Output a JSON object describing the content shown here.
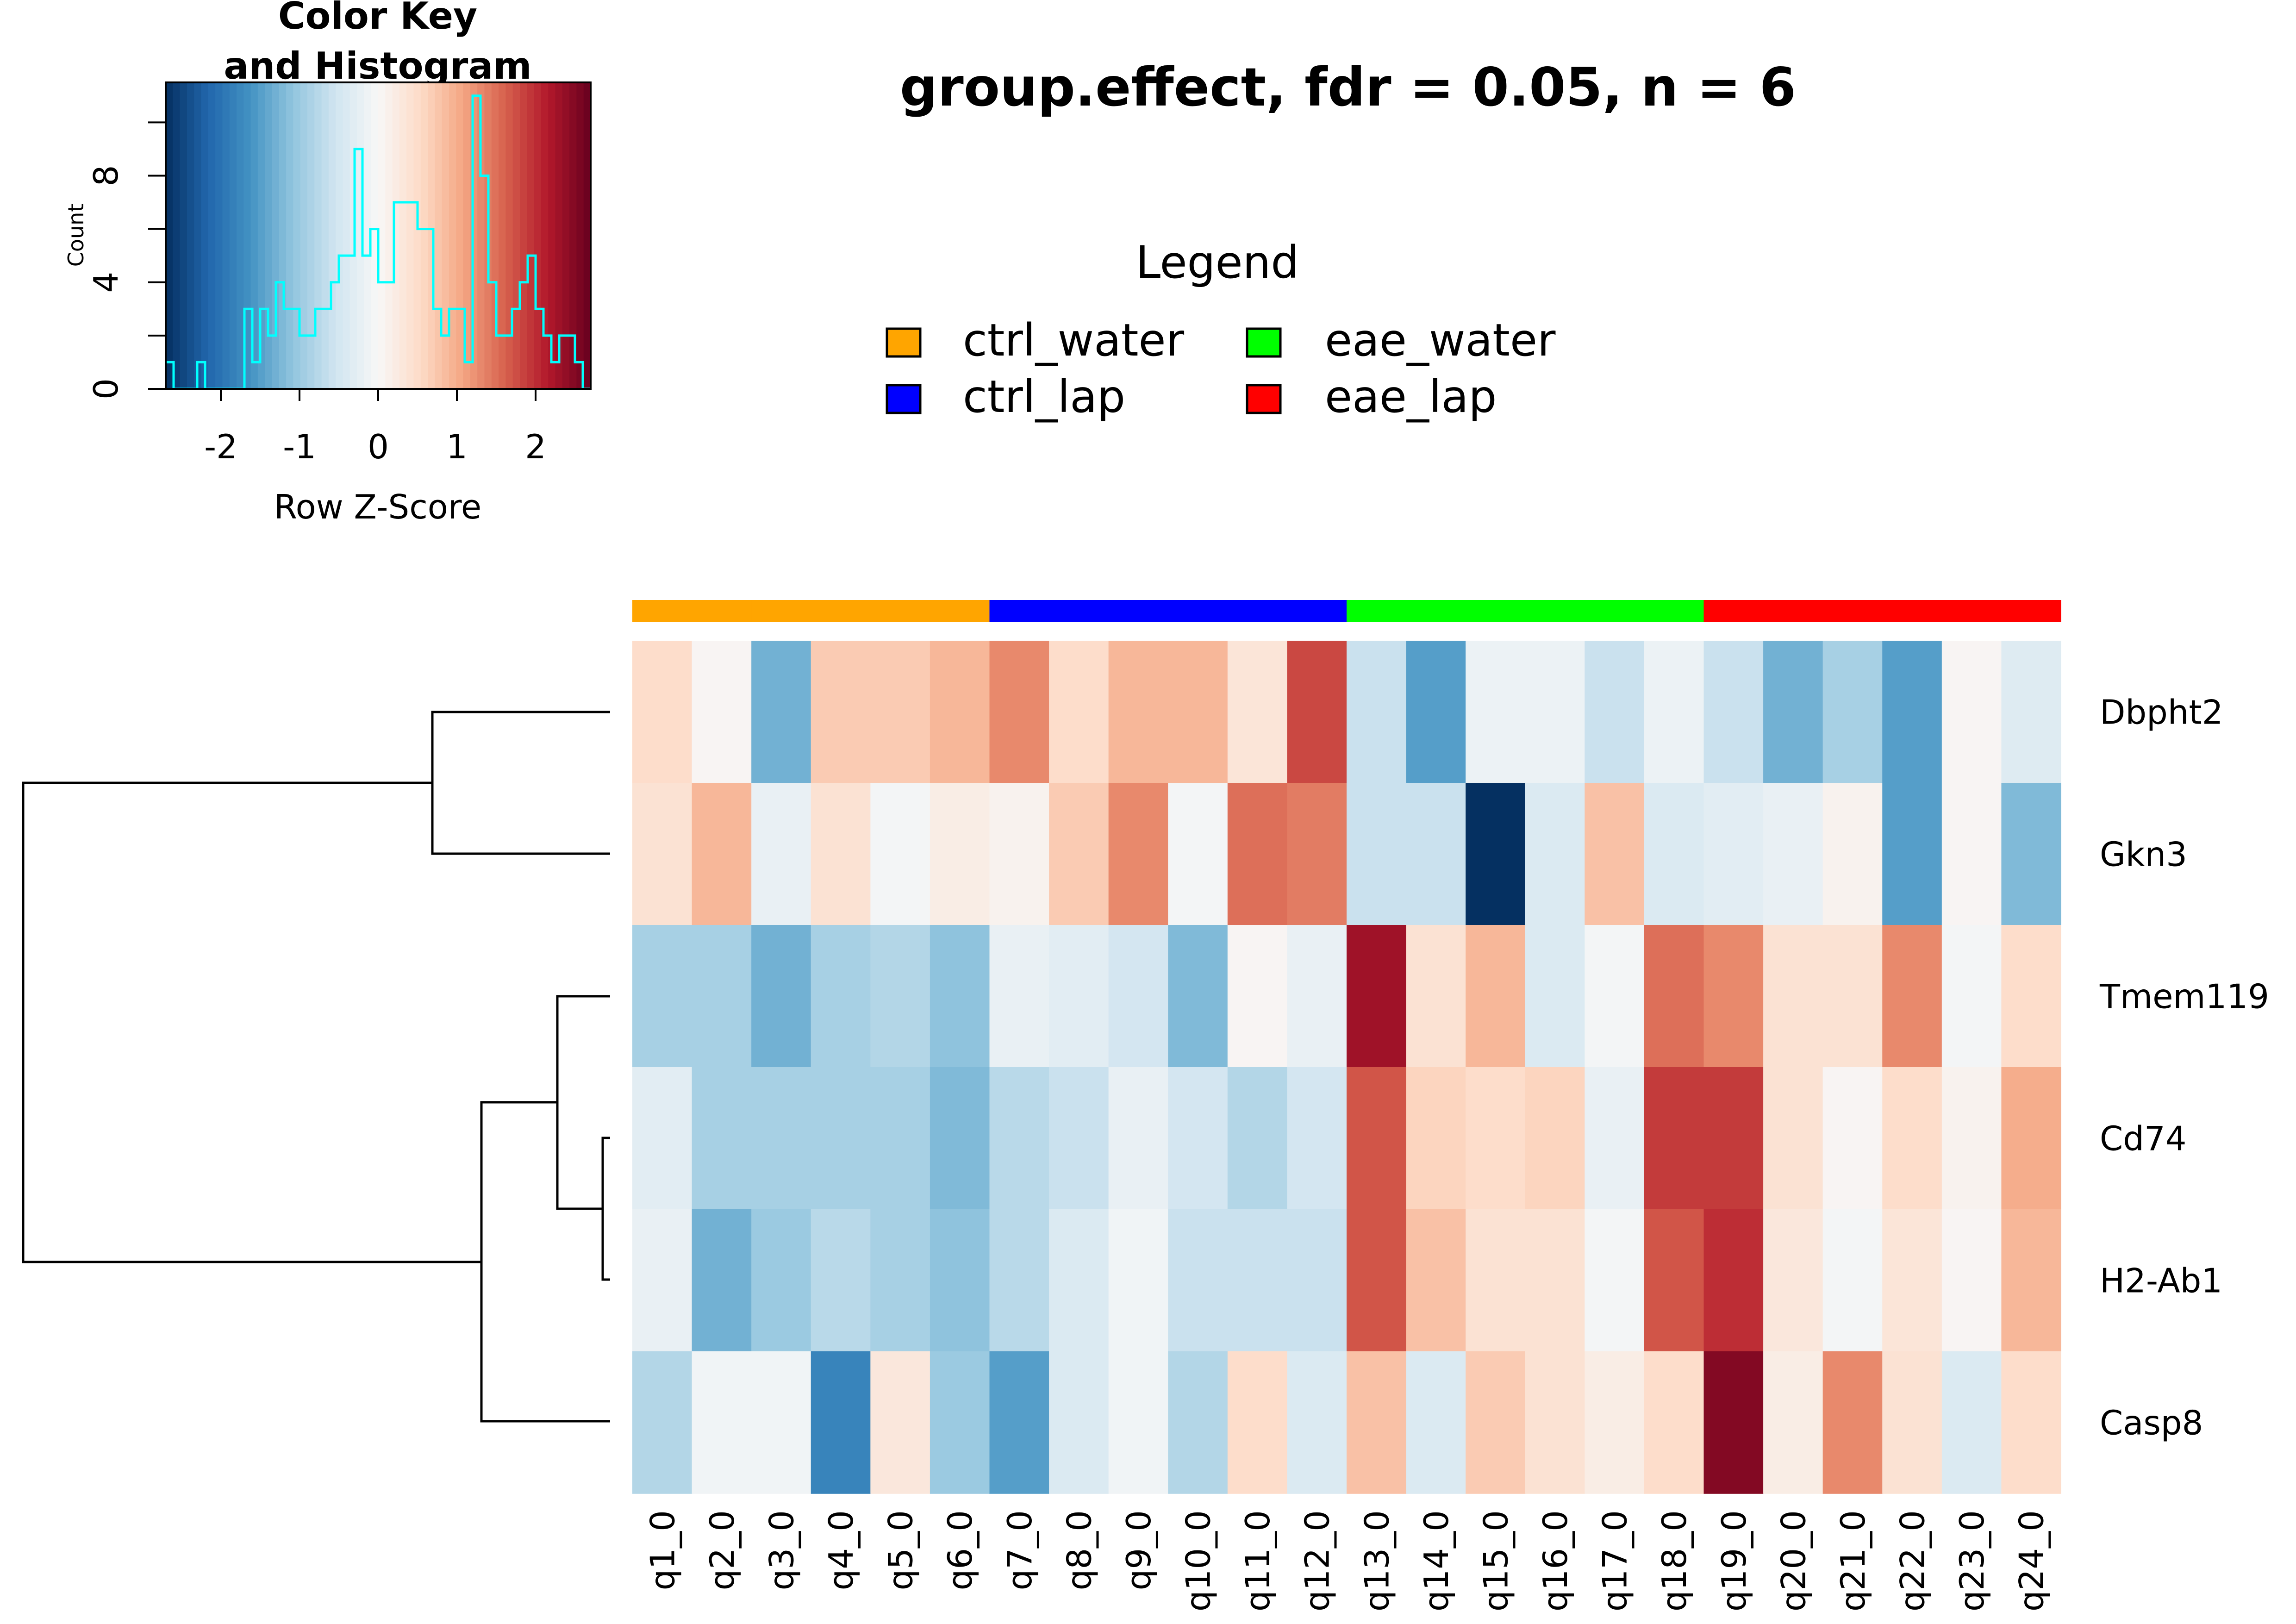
{
  "page": {
    "title": "group.effect, fdr = 0.05, n = 6"
  },
  "legend": {
    "title": "Legend",
    "items": [
      {
        "label": "ctrl_water",
        "color": "#FFA500"
      },
      {
        "label": "eae_water",
        "color": "#00FF00"
      },
      {
        "label": "ctrl_lap",
        "color": "#0000FF"
      },
      {
        "label": "eae_lap",
        "color": "#FF0000"
      }
    ]
  },
  "color_key": {
    "title_line1": "Color Key",
    "title_line2": "and Histogram",
    "xlabel": "Row Z-Score",
    "ylabel": "Count",
    "xticks": [
      "-2",
      "-1",
      "0",
      "1",
      "2"
    ],
    "yticks": [
      "0",
      "4",
      "8"
    ],
    "xlim": [
      -2.7,
      2.7
    ],
    "ylim": [
      0,
      11.5
    ],
    "histogram_color": "#00FFFF",
    "palette": [
      "#053061",
      "#2166AC",
      "#4393C3",
      "#92C5DE",
      "#D1E5F0",
      "#F7F7F7",
      "#FDDBC7",
      "#F4A582",
      "#D6604D",
      "#B2182B",
      "#67001F"
    ],
    "histogram": [
      {
        "x": -2.7,
        "count": 1
      },
      {
        "x": -2.6,
        "count": 0
      },
      {
        "x": -2.5,
        "count": 0
      },
      {
        "x": -2.4,
        "count": 0
      },
      {
        "x": -2.3,
        "count": 1
      },
      {
        "x": -2.2,
        "count": 0
      },
      {
        "x": -2.1,
        "count": 0
      },
      {
        "x": -2.0,
        "count": 0
      },
      {
        "x": -1.9,
        "count": 0
      },
      {
        "x": -1.8,
        "count": 0
      },
      {
        "x": -1.7,
        "count": 3
      },
      {
        "x": -1.6,
        "count": 1
      },
      {
        "x": -1.5,
        "count": 3
      },
      {
        "x": -1.4,
        "count": 2
      },
      {
        "x": -1.3,
        "count": 4
      },
      {
        "x": -1.2,
        "count": 3
      },
      {
        "x": -1.1,
        "count": 3
      },
      {
        "x": -1.0,
        "count": 2
      },
      {
        "x": -0.9,
        "count": 2
      },
      {
        "x": -0.8,
        "count": 3
      },
      {
        "x": -0.7,
        "count": 3
      },
      {
        "x": -0.6,
        "count": 4
      },
      {
        "x": -0.5,
        "count": 5
      },
      {
        "x": -0.4,
        "count": 5
      },
      {
        "x": -0.3,
        "count": 9
      },
      {
        "x": -0.2,
        "count": 5
      },
      {
        "x": -0.1,
        "count": 6
      },
      {
        "x": 0.0,
        "count": 4
      },
      {
        "x": 0.1,
        "count": 4
      },
      {
        "x": 0.2,
        "count": 7
      },
      {
        "x": 0.3,
        "count": 7
      },
      {
        "x": 0.4,
        "count": 7
      },
      {
        "x": 0.5,
        "count": 6
      },
      {
        "x": 0.6,
        "count": 6
      },
      {
        "x": 0.7,
        "count": 3
      },
      {
        "x": 0.8,
        "count": 2
      },
      {
        "x": 0.9,
        "count": 3
      },
      {
        "x": 1.0,
        "count": 3
      },
      {
        "x": 1.1,
        "count": 1
      },
      {
        "x": 1.2,
        "count": 11
      },
      {
        "x": 1.3,
        "count": 8
      },
      {
        "x": 1.4,
        "count": 4
      },
      {
        "x": 1.5,
        "count": 2
      },
      {
        "x": 1.6,
        "count": 2
      },
      {
        "x": 1.7,
        "count": 3
      },
      {
        "x": 1.8,
        "count": 4
      },
      {
        "x": 1.9,
        "count": 5
      },
      {
        "x": 2.0,
        "count": 3
      },
      {
        "x": 2.1,
        "count": 2
      },
      {
        "x": 2.2,
        "count": 1
      },
      {
        "x": 2.3,
        "count": 2
      },
      {
        "x": 2.4,
        "count": 2
      },
      {
        "x": 2.5,
        "count": 1
      },
      {
        "x": 2.6,
        "count": 0
      }
    ]
  },
  "chart_data": {
    "type": "heatmap",
    "title": "group.effect, fdr = 0.05, n = 6",
    "columns": [
      "q1_0",
      "q2_0",
      "q3_0",
      "q4_0",
      "q5_0",
      "q6_0",
      "q7_0",
      "q8_0",
      "q9_0",
      "q10_0",
      "q11_0",
      "q12_0",
      "q13_0",
      "q14_0",
      "q15_0",
      "q16_0",
      "q17_0",
      "q18_0",
      "q19_0",
      "q20_0",
      "q21_0",
      "q22_0",
      "q23_0",
      "q24_0"
    ],
    "column_groups": [
      "ctrl_water",
      "ctrl_water",
      "ctrl_water",
      "ctrl_water",
      "ctrl_water",
      "ctrl_water",
      "ctrl_lap",
      "ctrl_lap",
      "ctrl_lap",
      "ctrl_lap",
      "ctrl_lap",
      "ctrl_lap",
      "eae_water",
      "eae_water",
      "eae_water",
      "eae_water",
      "eae_water",
      "eae_water",
      "eae_lap",
      "eae_lap",
      "eae_lap",
      "eae_lap",
      "eae_lap",
      "eae_lap"
    ],
    "rows": [
      "Dbpht2",
      "Gkn3",
      "Tmem119",
      "Cd74",
      "H2-Ab1",
      "Casp8"
    ],
    "values": [
      [
        0.5,
        0.05,
        -1.3,
        0.7,
        0.7,
        0.9,
        1.3,
        0.5,
        0.9,
        0.9,
        0.35,
        1.8,
        -0.6,
        -1.5,
        -0.15,
        -0.15,
        -0.6,
        -0.15,
        -0.6,
        -1.3,
        -0.9,
        -1.5,
        0.05,
        -0.35
      ],
      [
        0.4,
        0.9,
        -0.2,
        0.4,
        -0.05,
        0.2,
        0.1,
        0.7,
        1.3,
        -0.05,
        1.5,
        1.4,
        -0.6,
        -0.6,
        -2.7,
        -0.4,
        0.8,
        -0.4,
        -0.3,
        -0.2,
        0.1,
        -1.5,
        0.05,
        -1.2
      ],
      [
        -0.9,
        -0.9,
        -1.3,
        -0.9,
        -0.8,
        -1.1,
        -0.2,
        -0.3,
        -0.5,
        -1.2,
        0.05,
        -0.2,
        2.3,
        0.4,
        0.9,
        -0.4,
        -0.05,
        1.5,
        1.3,
        0.4,
        0.4,
        1.3,
        -0.05,
        0.5
      ],
      [
        -0.3,
        -0.9,
        -0.9,
        -0.9,
        -0.9,
        -1.2,
        -0.75,
        -0.6,
        -0.2,
        -0.5,
        -0.8,
        -0.5,
        1.7,
        0.6,
        0.5,
        0.6,
        -0.2,
        1.9,
        1.9,
        0.4,
        0.05,
        0.5,
        0.1,
        1.0
      ],
      [
        -0.2,
        -1.3,
        -1.0,
        -0.75,
        -0.9,
        -1.1,
        -0.75,
        -0.4,
        -0.1,
        -0.6,
        -0.6,
        -0.6,
        1.7,
        0.8,
        0.4,
        0.4,
        -0.05,
        1.7,
        2.0,
        0.3,
        -0.05,
        0.35,
        0.05,
        0.9
      ],
      [
        -0.8,
        -0.1,
        -0.1,
        -1.8,
        0.3,
        -1.0,
        -1.5,
        -0.4,
        -0.1,
        -0.8,
        0.5,
        -0.4,
        0.8,
        -0.4,
        0.7,
        0.4,
        0.2,
        0.5,
        2.5,
        0.2,
        1.3,
        0.4,
        -0.4,
        0.5
      ]
    ],
    "group_colors": {
      "ctrl_water": "#FFA500",
      "ctrl_lap": "#0000FF",
      "eae_water": "#00FF00",
      "eae_lap": "#FF0000"
    },
    "color_range": [
      -2.7,
      2.7
    ],
    "dendrogram": {
      "merges": [
        {
          "left": "Cd74",
          "right": "H2-Ab1",
          "height": 0.5
        },
        {
          "left": "Tmem119",
          "right": "Cd74+H2-Ab1",
          "height": 1.6
        },
        {
          "left": "Dbpht2",
          "right": "Gkn3",
          "height": 4.7
        },
        {
          "left": "Tmem119+Cd74+H2-Ab1",
          "right": "Casp8",
          "height": 3.4
        },
        {
          "left": "Dbpht2+Gkn3",
          "right": "Tmem119+Cd74+H2-Ab1+Casp8",
          "height": 10.0
        }
      ]
    }
  }
}
